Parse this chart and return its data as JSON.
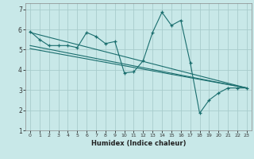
{
  "bg_color": "#c8e8e8",
  "grid_color": "#a8cccc",
  "line_color": "#1a6e6e",
  "xlim": [
    -0.5,
    23.5
  ],
  "ylim": [
    1.3,
    7.3
  ],
  "yticks": [
    2,
    3,
    4,
    5,
    6
  ],
  "ytick_extra_top": 7,
  "ytick_extra_bottom": 1,
  "xticks": [
    0,
    1,
    2,
    3,
    4,
    5,
    6,
    7,
    8,
    9,
    10,
    11,
    12,
    13,
    14,
    15,
    16,
    17,
    18,
    19,
    20,
    21,
    22,
    23
  ],
  "xlabel": "Humidex (Indice chaleur)",
  "series1_x": [
    0,
    1,
    2,
    3,
    4,
    5,
    6,
    7,
    8,
    9,
    10,
    11,
    12,
    13,
    14,
    15,
    16,
    17,
    18,
    19,
    20,
    21,
    22,
    23
  ],
  "series1_y": [
    5.9,
    5.5,
    5.2,
    5.2,
    5.2,
    5.1,
    5.85,
    5.65,
    5.3,
    5.4,
    3.85,
    3.9,
    4.45,
    5.85,
    6.85,
    6.2,
    6.45,
    4.35,
    1.85,
    2.5,
    2.85,
    3.1,
    3.1,
    3.1
  ],
  "trend1_x": [
    0,
    23
  ],
  "trend1_y": [
    5.85,
    3.1
  ],
  "trend2_x": [
    0,
    23
  ],
  "trend2_y": [
    5.2,
    3.1
  ],
  "trend3_x": [
    0,
    23
  ],
  "trend3_y": [
    5.05,
    3.1
  ]
}
